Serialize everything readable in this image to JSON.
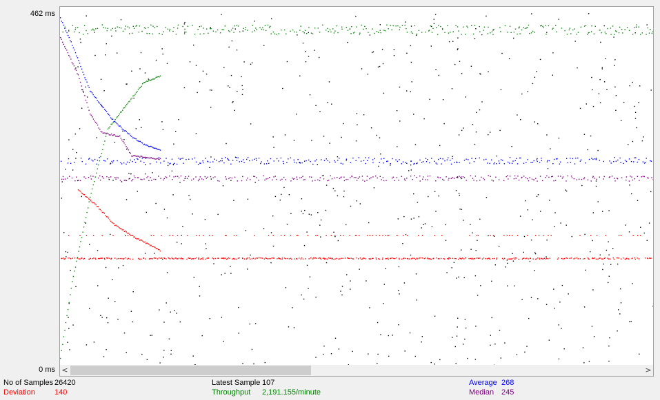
{
  "colors": {
    "throughput": "#008000",
    "average": "#0000ff",
    "median": "#800080",
    "deviation": "#ff0000",
    "data": "#000000",
    "plot_bg": "#ffffff",
    "frame": "#a0a0a0"
  },
  "axis": {
    "y_max_label": "462 ms",
    "y_min_label": "0 ms"
  },
  "stats": {
    "samples_label": "No of Samples",
    "samples_value": "26420",
    "deviation_label": "Deviation",
    "deviation_value": "140",
    "latest_label": "Latest Sample",
    "latest_value": "107",
    "throughput_label": "Throughput",
    "throughput_value": "2,191.155/minute",
    "average_label": "Average",
    "average_value": "268",
    "median_label": "Median",
    "median_value": "245"
  },
  "scrollbar": {
    "left_arrow": "<",
    "right_arrow": ">",
    "thumb_fraction": 0.42
  },
  "chart_data": {
    "type": "scatter",
    "ylim": [
      0,
      462
    ],
    "y_unit": "ms",
    "series": [
      {
        "key": "data",
        "color": "#000000",
        "note": "individual sample times, scattered across full range",
        "band_levels_ms": [
          55,
          115,
          175,
          235,
          295,
          355,
          415
        ]
      },
      {
        "key": "average",
        "color": "#0000ff",
        "curve": [
          [
            0.0,
            455
          ],
          [
            0.02,
            420
          ],
          [
            0.05,
            360
          ],
          [
            0.09,
            320
          ],
          [
            0.12,
            300
          ],
          [
            0.14,
            290
          ],
          [
            0.17,
            282
          ]
        ],
        "steady_ms": 268
      },
      {
        "key": "median",
        "color": "#800080",
        "curve": [
          [
            0.0,
            430
          ],
          [
            0.03,
            380
          ],
          [
            0.05,
            330
          ],
          [
            0.07,
            305
          ],
          [
            0.1,
            300
          ],
          [
            0.12,
            275
          ],
          [
            0.17,
            270
          ]
        ],
        "steady_ms": 245
      },
      {
        "key": "deviation",
        "color": "#ff0000",
        "curve": [
          [
            0.03,
            230
          ],
          [
            0.06,
            210
          ],
          [
            0.09,
            185
          ],
          [
            0.12,
            170
          ],
          [
            0.17,
            150
          ]
        ],
        "steady_ms": 140
      },
      {
        "key": "throughput",
        "color": "#008000",
        "curve": [
          [
            0.0,
            10
          ],
          [
            0.02,
            110
          ],
          [
            0.05,
            220
          ],
          [
            0.08,
            310
          ],
          [
            0.11,
            340
          ],
          [
            0.14,
            370
          ],
          [
            0.17,
            380
          ]
        ],
        "steady_ms": 440
      }
    ]
  }
}
